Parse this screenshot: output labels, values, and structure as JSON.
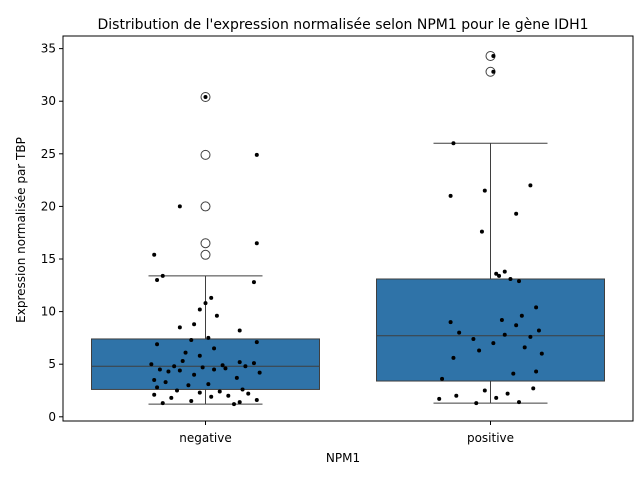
{
  "chart_data": {
    "type": "boxplot",
    "title": "Distribution de l'expression normalisée selon NPM1 pour le gène IDH1",
    "xlabel": "NPM1",
    "ylabel": "Expression normalisée par TBP",
    "categories": [
      "negative",
      "positive"
    ],
    "ylim": [
      -0.4,
      36.2
    ],
    "yticks": [
      0,
      5,
      10,
      15,
      20,
      25,
      30,
      35
    ],
    "grid": false,
    "box_color": "#2f73a8",
    "boxes": [
      {
        "category": "negative",
        "whisker_low": 1.2,
        "q1": 2.6,
        "median": 4.8,
        "q3": 7.4,
        "whisker_high": 13.4,
        "outliers": [
          15.4,
          16.5,
          20.0,
          24.9,
          30.4
        ]
      },
      {
        "category": "positive",
        "whisker_low": 1.3,
        "q1": 3.4,
        "median": 7.7,
        "q3": 13.1,
        "whisker_high": 26.0,
        "outliers": [
          32.8,
          34.3
        ]
      }
    ],
    "points": [
      {
        "category": "negative",
        "values": [
          1.2,
          1.3,
          1.4,
          1.5,
          1.6,
          1.8,
          1.9,
          2.0,
          2.1,
          2.2,
          2.3,
          2.4,
          2.5,
          2.6,
          2.8,
          3.0,
          3.1,
          3.3,
          3.5,
          3.7,
          4.0,
          4.2,
          4.3,
          4.4,
          4.5,
          4.5,
          4.6,
          4.7,
          4.8,
          4.8,
          4.9,
          5.0,
          5.1,
          5.2,
          5.3,
          5.8,
          6.1,
          6.5,
          6.9,
          7.1,
          7.3,
          7.5,
          8.2,
          8.5,
          8.8,
          9.6,
          10.2,
          10.8,
          11.3,
          12.8,
          13.0,
          13.4,
          15.4,
          16.5,
          20.0,
          24.9,
          30.4
        ],
        "jitter": [
          0.1,
          -0.15,
          0.12,
          -0.05,
          0.18,
          -0.12,
          0.02,
          0.08,
          -0.18,
          0.15,
          -0.02,
          0.05,
          -0.1,
          0.13,
          -0.17,
          -0.06,
          0.01,
          -0.14,
          -0.18,
          0.11,
          -0.04,
          0.19,
          -0.13,
          -0.09,
          -0.16,
          0.03,
          0.07,
          -0.01,
          0.14,
          -0.11,
          0.06,
          -0.19,
          0.17,
          0.12,
          -0.08,
          -0.02,
          -0.07,
          0.03,
          -0.17,
          0.18,
          -0.05,
          0.01,
          0.12,
          -0.09,
          -0.04,
          0.04,
          -0.02,
          0.0,
          0.02,
          0.17,
          -0.17,
          -0.15,
          -0.18,
          0.18,
          -0.09,
          0.18,
          0.0
        ]
      },
      {
        "category": "positive",
        "values": [
          1.3,
          1.4,
          1.7,
          1.8,
          2.0,
          2.2,
          2.5,
          2.7,
          3.6,
          4.1,
          4.3,
          5.6,
          6.0,
          6.3,
          6.6,
          7.0,
          7.4,
          7.6,
          7.8,
          8.0,
          8.2,
          8.7,
          9.0,
          9.2,
          9.6,
          10.4,
          12.9,
          13.1,
          13.4,
          13.6,
          13.8,
          17.6,
          19.3,
          21.0,
          21.5,
          22.0,
          26.0,
          32.8,
          34.3
        ],
        "jitter": [
          -0.05,
          0.1,
          -0.18,
          0.02,
          -0.12,
          0.06,
          -0.02,
          0.15,
          -0.17,
          0.08,
          0.16,
          -0.13,
          0.18,
          -0.04,
          0.12,
          0.01,
          -0.06,
          0.14,
          0.05,
          -0.11,
          0.17,
          0.09,
          -0.14,
          0.04,
          0.11,
          0.16,
          0.1,
          0.07,
          0.03,
          0.02,
          0.05,
          -0.03,
          0.09,
          -0.14,
          -0.02,
          0.14,
          -0.13,
          0.01,
          0.01
        ]
      }
    ]
  }
}
